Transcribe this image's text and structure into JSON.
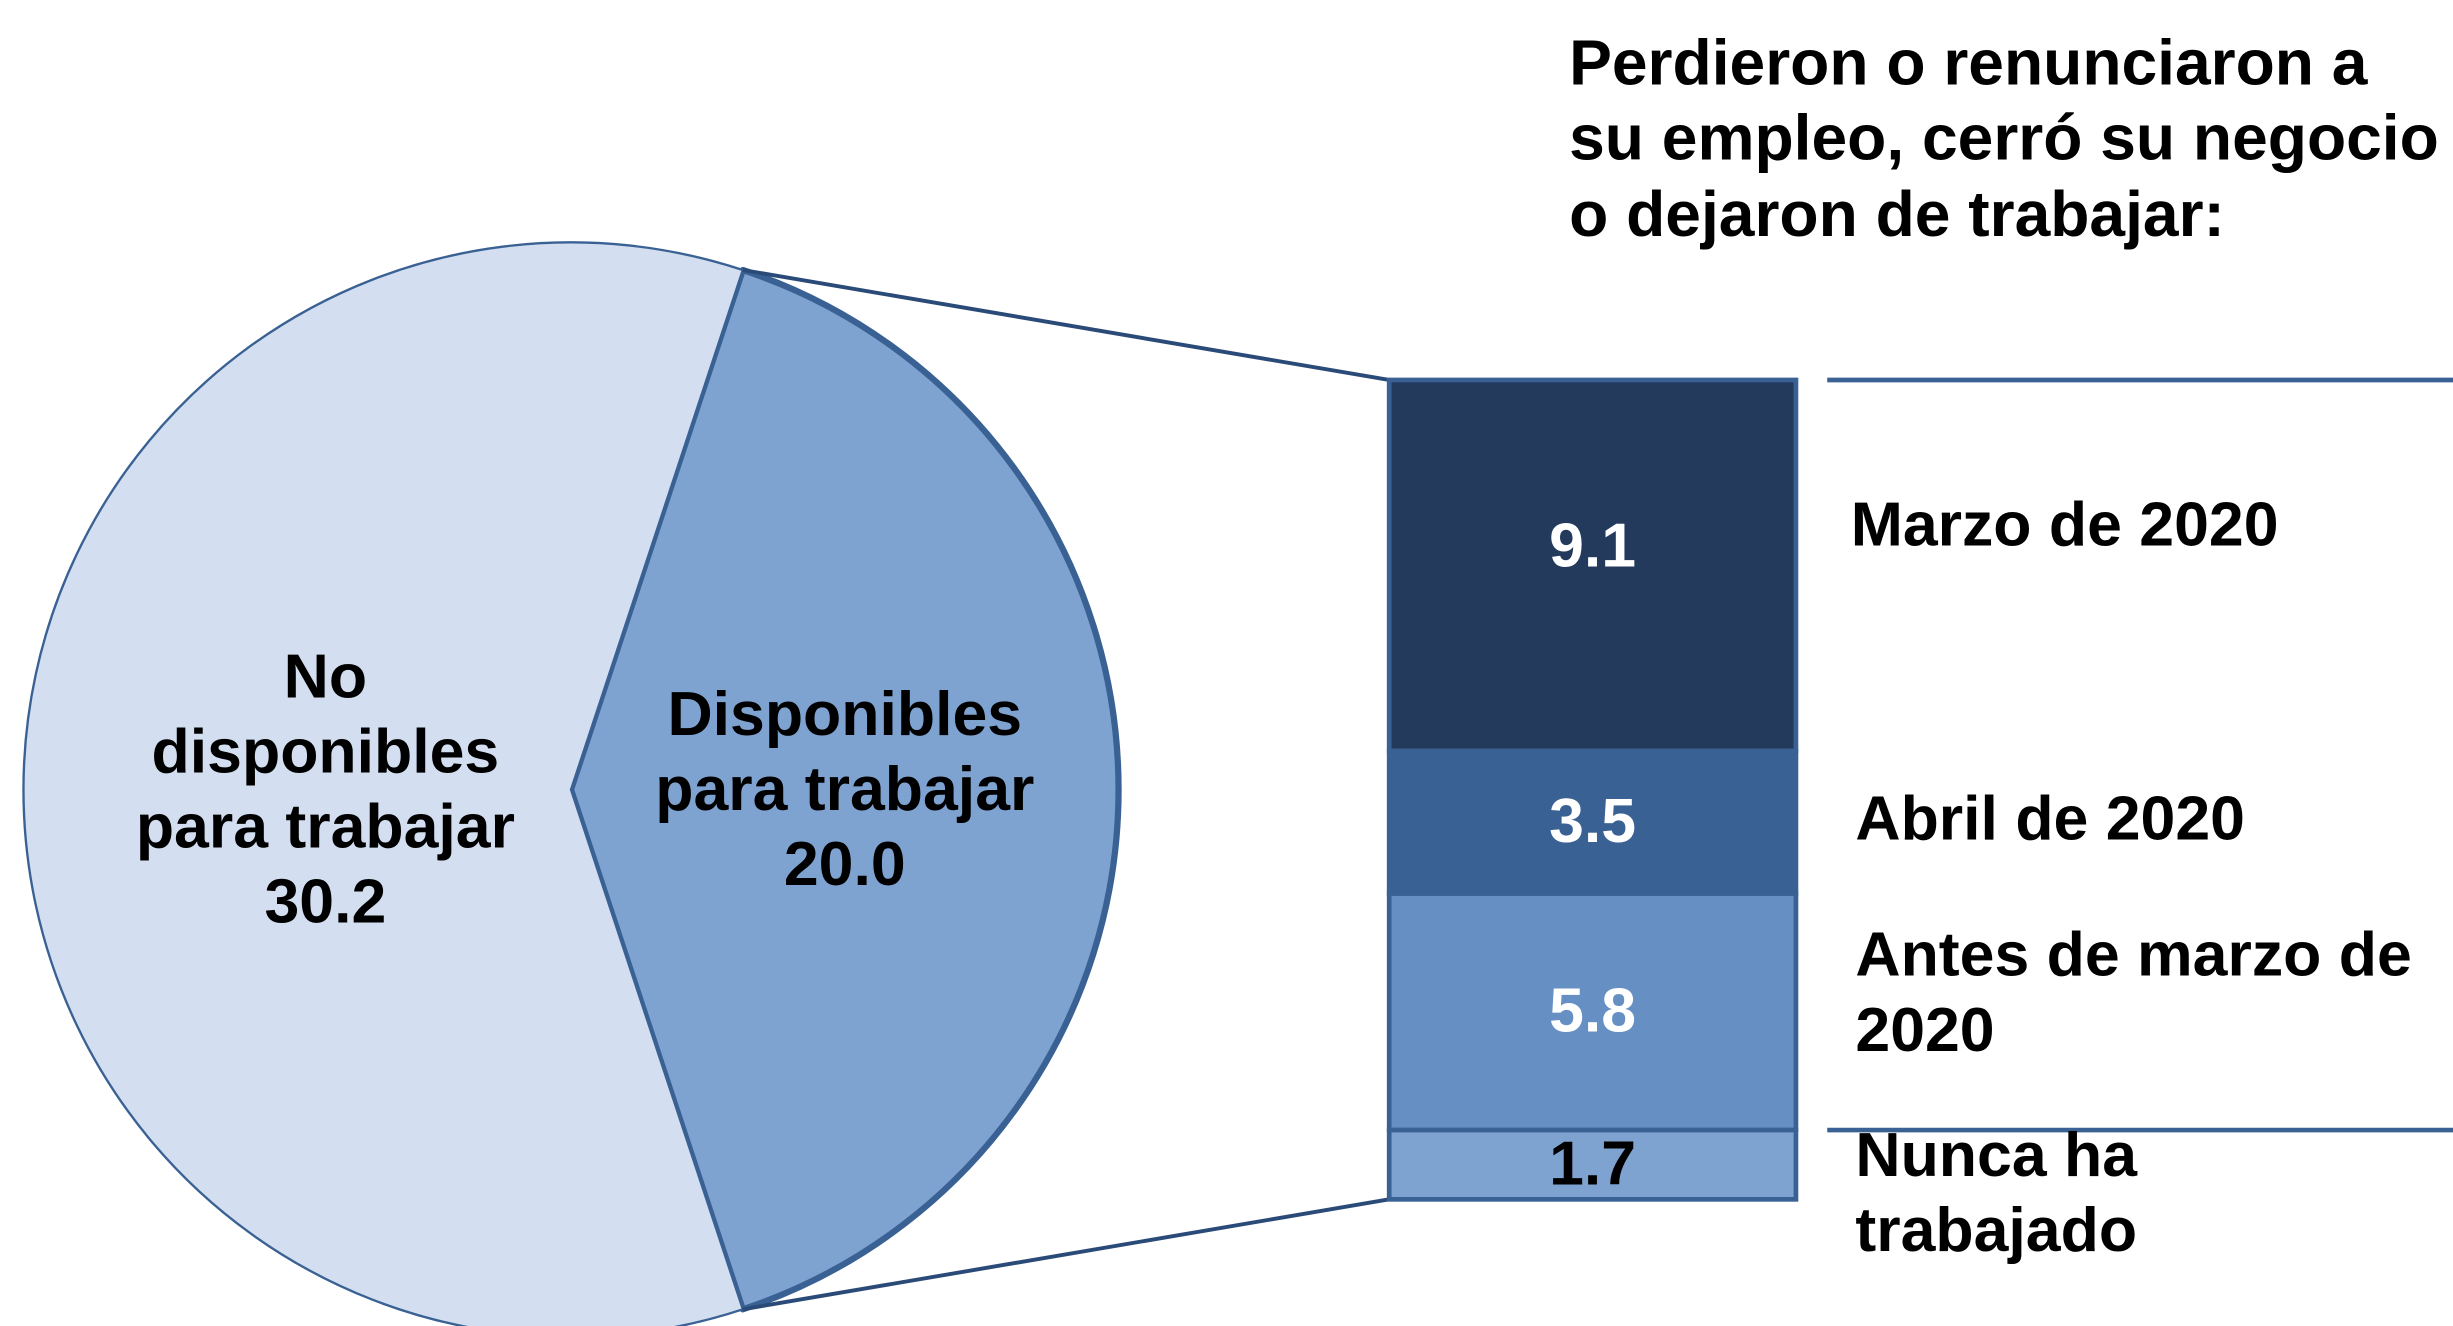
{
  "chart_data": {
    "type": "pie",
    "categories": [
      "No disponibles para trabajar",
      "Disponibles para trabajar"
    ],
    "values": [
      30.2,
      20.0
    ],
    "value_labels": [
      "30.2",
      "20.0"
    ],
    "colors": [
      "#d3dff0",
      "#7fa3d1"
    ],
    "breakdown": {
      "type": "bar",
      "of": 1,
      "title": "Perdieron o renunciaron a su empleo, cerró su negocio o dejaron de trabajar:",
      "categories": [
        "Marzo de 2020",
        "Abril de 2020",
        "Antes de marzo de 2020",
        "Nunca ha trabajado"
      ],
      "values": [
        9.1,
        3.5,
        5.8,
        1.7
      ],
      "colors": [
        "#233a5c",
        "#3a6193",
        "#6690c4",
        "#7fa3d1"
      ]
    }
  }
}
